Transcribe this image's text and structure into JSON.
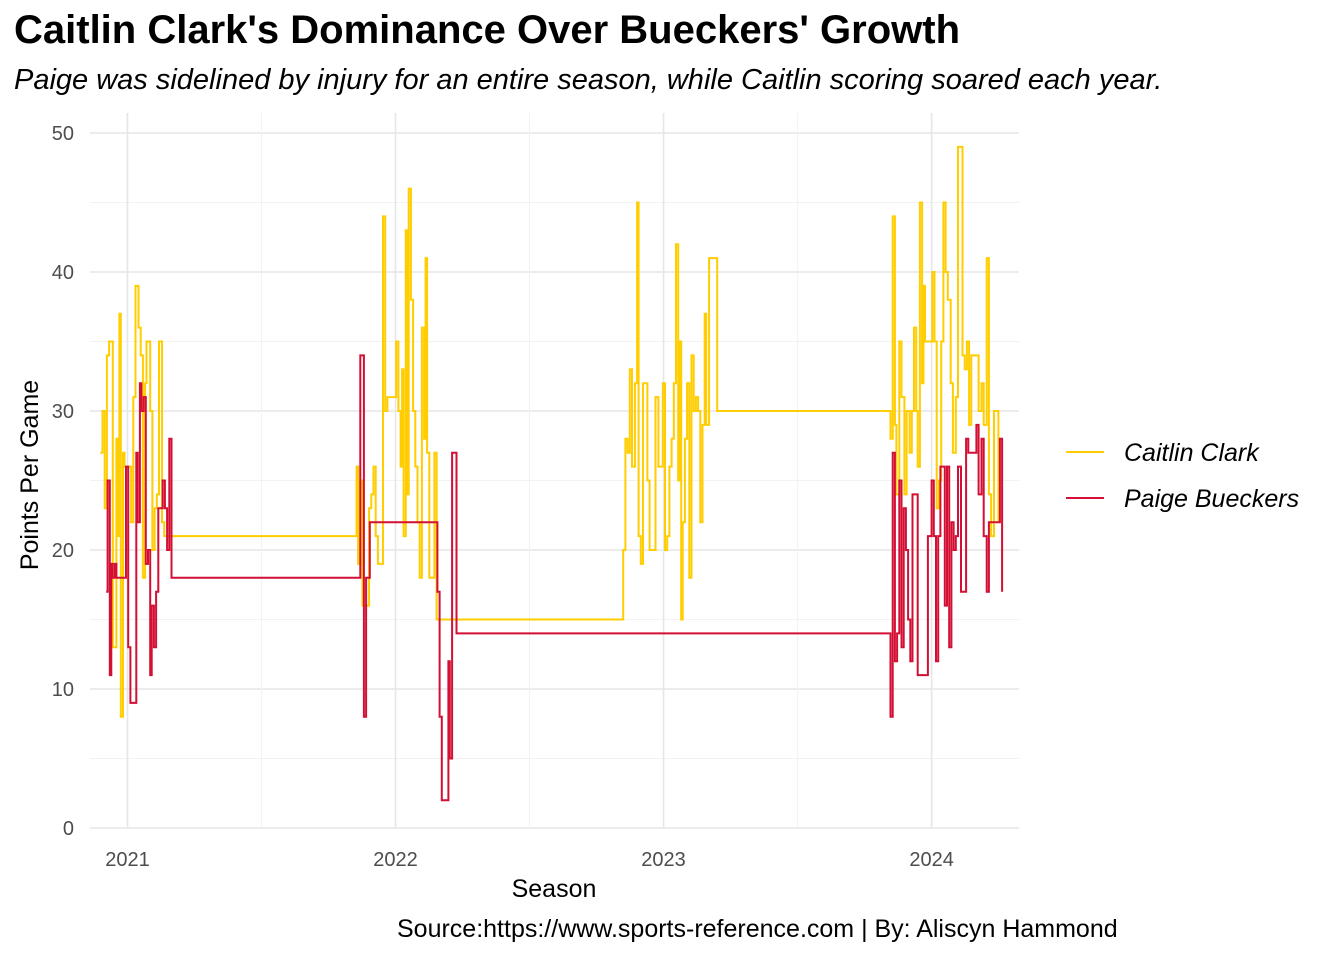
{
  "title": "Caitlin Clark's Dominance Over Bueckers' Growth",
  "subtitle": "Paige was sidelined by injury for an entire season, while Caitlin scoring soared each year.",
  "caption": "Source:https://www.sports-reference.com | By: Aliscyn Hammond",
  "chart_data": {
    "type": "line",
    "step": true,
    "xlabel": "Season",
    "ylabel": "Points Per Game",
    "xlim": [
      "2020-11-11",
      "2024-04-29"
    ],
    "ylim": [
      0,
      50
    ],
    "yticks": [
      0,
      10,
      20,
      30,
      40,
      50
    ],
    "xticks": [
      {
        "label": "2021",
        "date": "2021-01-01"
      },
      {
        "label": "2022",
        "date": "2022-01-01"
      },
      {
        "label": "2023",
        "date": "2023-01-01"
      },
      {
        "label": "2024",
        "date": "2024-01-01"
      }
    ],
    "grid": true,
    "legend_position": "right",
    "series": [
      {
        "name": "Caitlin Clark",
        "color": "#FFCD00",
        "points": [
          [
            "2020-11-25",
            27
          ],
          [
            "2020-11-28",
            30
          ],
          [
            "2020-12-01",
            23
          ],
          [
            "2020-12-04",
            34
          ],
          [
            "2020-12-07",
            35
          ],
          [
            "2020-12-12",
            13
          ],
          [
            "2020-12-17",
            28
          ],
          [
            "2020-12-19",
            21
          ],
          [
            "2020-12-21",
            37
          ],
          [
            "2020-12-23",
            8
          ],
          [
            "2020-12-26",
            27
          ],
          [
            "2020-12-28",
            26
          ],
          [
            "2021-01-03",
            26
          ],
          [
            "2021-01-06",
            22
          ],
          [
            "2021-01-09",
            31
          ],
          [
            "2021-01-12",
            39
          ],
          [
            "2021-01-16",
            36
          ],
          [
            "2021-01-19",
            34
          ],
          [
            "2021-01-22",
            18
          ],
          [
            "2021-01-25",
            32
          ],
          [
            "2021-01-27",
            35
          ],
          [
            "2021-02-01",
            30
          ],
          [
            "2021-02-04",
            20
          ],
          [
            "2021-02-07",
            23
          ],
          [
            "2021-02-10",
            24
          ],
          [
            "2021-02-13",
            35
          ],
          [
            "2021-02-17",
            22
          ],
          [
            "2021-02-20",
            21
          ],
          [
            "2021-11-09",
            26
          ],
          [
            "2021-11-11",
            19
          ],
          [
            "2021-11-14",
            25
          ],
          [
            "2021-11-17",
            16
          ],
          [
            "2021-11-20",
            16
          ],
          [
            "2021-11-26",
            23
          ],
          [
            "2021-11-29",
            24
          ],
          [
            "2021-12-02",
            26
          ],
          [
            "2021-12-05",
            21
          ],
          [
            "2021-12-08",
            19
          ],
          [
            "2021-12-12",
            19
          ],
          [
            "2021-12-15",
            44
          ],
          [
            "2021-12-18",
            30
          ],
          [
            "2021-12-21",
            31
          ],
          [
            "2021-12-25",
            31
          ],
          [
            "2022-01-02",
            35
          ],
          [
            "2022-01-05",
            30
          ],
          [
            "2022-01-08",
            26
          ],
          [
            "2022-01-10",
            33
          ],
          [
            "2022-01-12",
            21
          ],
          [
            "2022-01-15",
            43
          ],
          [
            "2022-01-17",
            24
          ],
          [
            "2022-01-19",
            46
          ],
          [
            "2022-01-22",
            38
          ],
          [
            "2022-01-25",
            30
          ],
          [
            "2022-01-28",
            26
          ],
          [
            "2022-01-31",
            22
          ],
          [
            "2022-02-03",
            18
          ],
          [
            "2022-02-06",
            36
          ],
          [
            "2022-02-09",
            28
          ],
          [
            "2022-02-11",
            41
          ],
          [
            "2022-02-13",
            27
          ],
          [
            "2022-02-16",
            18
          ],
          [
            "2022-02-20",
            18
          ],
          [
            "2022-02-23",
            27
          ],
          [
            "2022-02-26",
            15
          ],
          [
            "2022-11-07",
            20
          ],
          [
            "2022-11-10",
            28
          ],
          [
            "2022-11-13",
            27
          ],
          [
            "2022-11-16",
            33
          ],
          [
            "2022-11-19",
            26
          ],
          [
            "2022-11-23",
            32
          ],
          [
            "2022-11-26",
            45
          ],
          [
            "2022-11-28",
            21
          ],
          [
            "2022-12-01",
            19
          ],
          [
            "2022-12-04",
            32
          ],
          [
            "2022-12-07",
            32
          ],
          [
            "2022-12-10",
            25
          ],
          [
            "2022-12-13",
            20
          ],
          [
            "2022-12-16",
            20
          ],
          [
            "2022-12-21",
            31
          ],
          [
            "2022-12-25",
            26
          ],
          [
            "2022-12-31",
            32
          ],
          [
            "2023-01-03",
            20
          ],
          [
            "2023-01-06",
            21
          ],
          [
            "2023-01-09",
            26
          ],
          [
            "2023-01-12",
            28
          ],
          [
            "2023-01-15",
            32
          ],
          [
            "2023-01-18",
            42
          ],
          [
            "2023-01-21",
            25
          ],
          [
            "2023-01-23",
            35
          ],
          [
            "2023-01-25",
            15
          ],
          [
            "2023-01-27",
            22
          ],
          [
            "2023-01-30",
            28
          ],
          [
            "2023-02-02",
            32
          ],
          [
            "2023-02-05",
            18
          ],
          [
            "2023-02-08",
            34
          ],
          [
            "2023-02-11",
            30
          ],
          [
            "2023-02-14",
            31
          ],
          [
            "2023-02-17",
            30
          ],
          [
            "2023-02-20",
            22
          ],
          [
            "2023-02-23",
            29
          ],
          [
            "2023-02-26",
            37
          ],
          [
            "2023-02-28",
            29
          ],
          [
            "2023-03-04",
            41
          ],
          [
            "2023-03-15",
            30
          ],
          [
            "2023-11-06",
            28
          ],
          [
            "2023-11-09",
            44
          ],
          [
            "2023-11-12",
            29
          ],
          [
            "2023-11-14",
            24
          ],
          [
            "2023-11-18",
            35
          ],
          [
            "2023-11-21",
            31
          ],
          [
            "2023-11-25",
            24
          ],
          [
            "2023-11-28",
            30
          ],
          [
            "2023-12-02",
            27
          ],
          [
            "2023-12-05",
            30
          ],
          [
            "2023-12-08",
            36
          ],
          [
            "2023-12-11",
            30
          ],
          [
            "2023-12-13",
            26
          ],
          [
            "2023-12-16",
            45
          ],
          [
            "2023-12-19",
            32
          ],
          [
            "2023-12-21",
            39
          ],
          [
            "2023-12-23",
            35
          ],
          [
            "2023-12-27",
            35
          ],
          [
            "2023-12-30",
            35
          ],
          [
            "2024-01-02",
            40
          ],
          [
            "2024-01-05",
            35
          ],
          [
            "2024-01-08",
            23
          ],
          [
            "2024-01-11",
            25
          ],
          [
            "2024-01-14",
            35
          ],
          [
            "2024-01-17",
            45
          ],
          [
            "2024-01-20",
            40
          ],
          [
            "2024-01-23",
            38
          ],
          [
            "2024-01-27",
            32
          ],
          [
            "2024-01-30",
            27
          ],
          [
            "2024-02-03",
            31
          ],
          [
            "2024-02-06",
            49
          ],
          [
            "2024-02-12",
            34
          ],
          [
            "2024-02-15",
            33
          ],
          [
            "2024-02-18",
            35
          ],
          [
            "2024-02-21",
            29
          ],
          [
            "2024-02-24",
            34
          ],
          [
            "2024-02-27",
            34
          ],
          [
            "2024-03-02",
            34
          ],
          [
            "2024-03-05",
            30
          ],
          [
            "2024-03-09",
            32
          ],
          [
            "2024-03-12",
            29
          ],
          [
            "2024-03-16",
            41
          ],
          [
            "2024-03-19",
            24
          ],
          [
            "2024-03-22",
            21
          ],
          [
            "2024-03-26",
            30
          ],
          [
            "2024-04-01",
            22
          ]
        ]
      },
      {
        "name": "Paige Bueckers",
        "color": "#D30F34",
        "points": [
          [
            "2020-12-03",
            17
          ],
          [
            "2020-12-05",
            25
          ],
          [
            "2020-12-08",
            11
          ],
          [
            "2020-12-10",
            19
          ],
          [
            "2020-12-12",
            18
          ],
          [
            "2020-12-15",
            19
          ],
          [
            "2020-12-17",
            18
          ],
          [
            "2020-12-20",
            18
          ],
          [
            "2020-12-30",
            26
          ],
          [
            "2021-01-02",
            13
          ],
          [
            "2021-01-05",
            9
          ],
          [
            "2021-01-09",
            9
          ],
          [
            "2021-01-13",
            27
          ],
          [
            "2021-01-15",
            22
          ],
          [
            "2021-01-18",
            32
          ],
          [
            "2021-01-20",
            30
          ],
          [
            "2021-01-23",
            31
          ],
          [
            "2021-01-26",
            19
          ],
          [
            "2021-01-29",
            20
          ],
          [
            "2021-02-01",
            11
          ],
          [
            "2021-02-03",
            16
          ],
          [
            "2021-02-06",
            13
          ],
          [
            "2021-02-09",
            17
          ],
          [
            "2021-02-12",
            23
          ],
          [
            "2021-02-15",
            23
          ],
          [
            "2021-02-18",
            25
          ],
          [
            "2021-02-21",
            23
          ],
          [
            "2021-02-24",
            20
          ],
          [
            "2021-02-27",
            28
          ],
          [
            "2021-03-02",
            18
          ],
          [
            "2021-11-14",
            34
          ],
          [
            "2021-11-17",
            34
          ],
          [
            "2021-11-19",
            8
          ],
          [
            "2021-11-22",
            18
          ],
          [
            "2021-11-25",
            18
          ],
          [
            "2021-11-27",
            22
          ],
          [
            "2021-11-30",
            22
          ],
          [
            "2022-02-27",
            17
          ],
          [
            "2022-03-02",
            8
          ],
          [
            "2022-03-05",
            2
          ],
          [
            "2022-03-10",
            2
          ],
          [
            "2022-03-14",
            12
          ],
          [
            "2022-03-16",
            5
          ],
          [
            "2022-03-19",
            27
          ],
          [
            "2022-03-22",
            27
          ],
          [
            "2022-03-25",
            14
          ],
          [
            "2023-11-06",
            8
          ],
          [
            "2023-11-09",
            27
          ],
          [
            "2023-11-12",
            12
          ],
          [
            "2023-11-15",
            14
          ],
          [
            "2023-11-18",
            25
          ],
          [
            "2023-11-21",
            13
          ],
          [
            "2023-11-24",
            23
          ],
          [
            "2023-11-27",
            20
          ],
          [
            "2023-11-30",
            15
          ],
          [
            "2023-12-03",
            12
          ],
          [
            "2023-12-06",
            24
          ],
          [
            "2023-12-09",
            24
          ],
          [
            "2023-12-13",
            11
          ],
          [
            "2023-12-16",
            11
          ],
          [
            "2023-12-20",
            11
          ],
          [
            "2023-12-23",
            11
          ],
          [
            "2023-12-27",
            21
          ],
          [
            "2024-01-01",
            25
          ],
          [
            "2024-01-04",
            21
          ],
          [
            "2024-01-07",
            12
          ],
          [
            "2024-01-10",
            21
          ],
          [
            "2024-01-13",
            26
          ],
          [
            "2024-01-16",
            26
          ],
          [
            "2024-01-19",
            16
          ],
          [
            "2024-01-22",
            26
          ],
          [
            "2024-01-25",
            13
          ],
          [
            "2024-01-28",
            22
          ],
          [
            "2024-01-31",
            20
          ],
          [
            "2024-02-03",
            21
          ],
          [
            "2024-02-06",
            26
          ],
          [
            "2024-02-10",
            17
          ],
          [
            "2024-02-14",
            17
          ],
          [
            "2024-02-17",
            28
          ],
          [
            "2024-02-20",
            27
          ],
          [
            "2024-02-23",
            27
          ],
          [
            "2024-02-26",
            27
          ],
          [
            "2024-03-02",
            29
          ],
          [
            "2024-03-05",
            24
          ],
          [
            "2024-03-09",
            28
          ],
          [
            "2024-03-12",
            21
          ],
          [
            "2024-03-16",
            17
          ],
          [
            "2024-03-19",
            22
          ],
          [
            "2024-04-03",
            28
          ],
          [
            "2024-04-06",
            17
          ]
        ]
      }
    ]
  }
}
